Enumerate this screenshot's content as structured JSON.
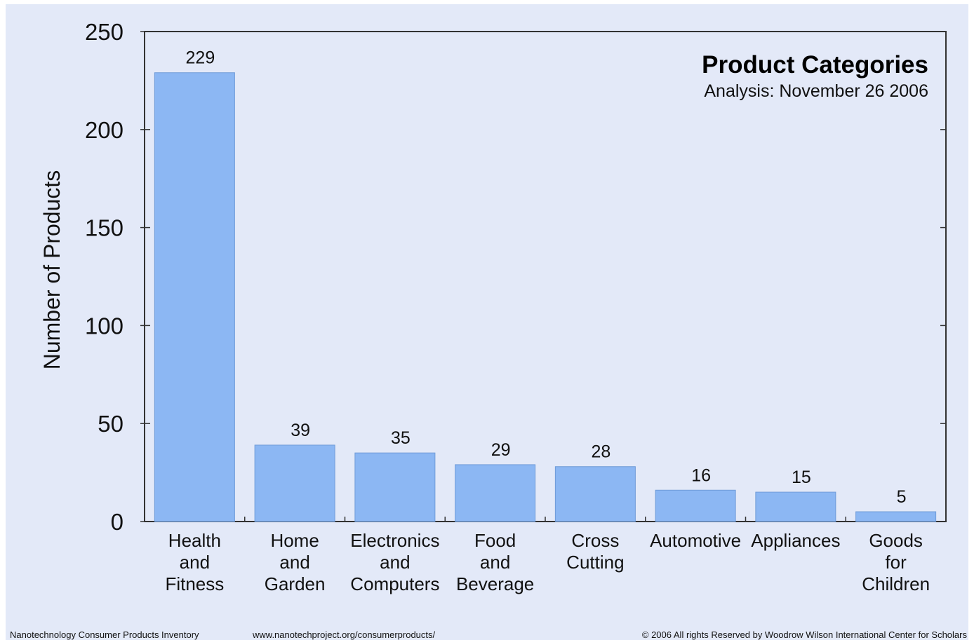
{
  "chart_data": {
    "type": "bar",
    "title": "Product Categories",
    "subtitle": "Analysis: November 26 2006",
    "ylabel": "Number of Products",
    "xlabel": "",
    "ylim": [
      0,
      250
    ],
    "yticks": [
      0,
      50,
      100,
      150,
      200,
      250
    ],
    "categories": [
      [
        "Health",
        "and",
        "Fitness"
      ],
      [
        "Home",
        "and",
        "Garden"
      ],
      [
        "Electronics",
        "and",
        "Computers"
      ],
      [
        "Food",
        "and",
        "Beverage"
      ],
      [
        "Cross",
        "Cutting"
      ],
      [
        "Automotive"
      ],
      [
        "Appliances"
      ],
      [
        "Goods",
        "for",
        "Children"
      ]
    ],
    "values": [
      229,
      39,
      35,
      29,
      28,
      16,
      15,
      5
    ],
    "data_labels": [
      "229",
      "39",
      "35",
      "29",
      "28",
      "16",
      "15",
      "5"
    ],
    "bar_color": "#8cb7f3",
    "background_color": "#e3e9f8",
    "grid": false,
    "legend": "none"
  },
  "footer": {
    "left": "Nanotechnology Consumer Products Inventory",
    "middle": "www.nanotechproject.org/consumerproducts/",
    "right": "© 2006 All rights Reserved by Woodrow Wilson International Center for Scholars"
  }
}
